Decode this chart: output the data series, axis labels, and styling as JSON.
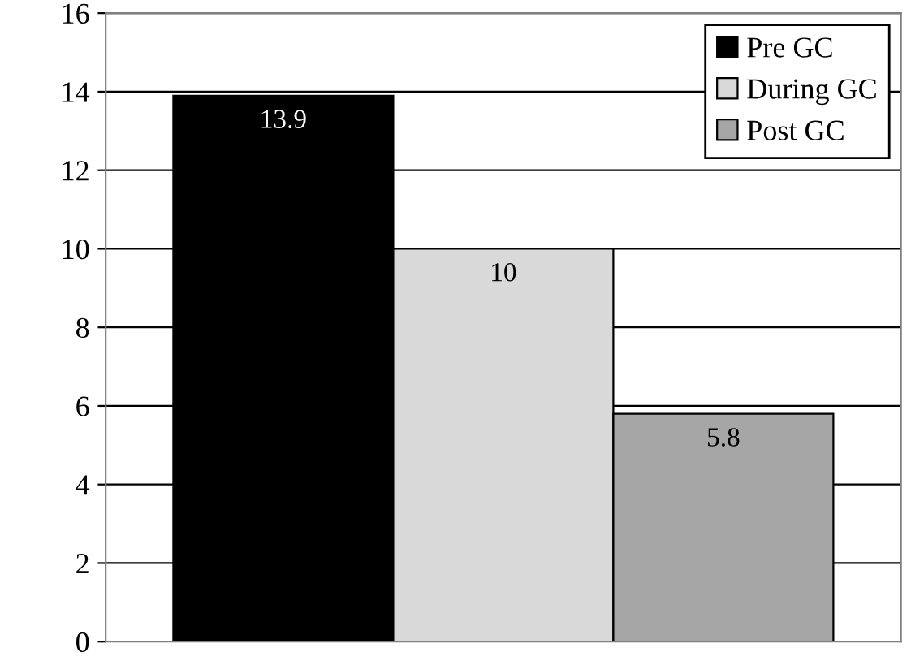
{
  "chart_data": {
    "type": "bar",
    "categories": [
      null
    ],
    "series": [
      {
        "name": "Pre GC",
        "color": "#000000",
        "values": [
          13.9
        ]
      },
      {
        "name": "During GC",
        "color": "#d9d9d9",
        "values": [
          10
        ]
      },
      {
        "name": "Post GC",
        "color": "#a6a6a6",
        "values": [
          5.8
        ]
      }
    ],
    "ylim": [
      0,
      16
    ],
    "yticks": [
      0,
      2,
      4,
      6,
      8,
      10,
      12,
      14,
      16
    ],
    "grid": "y",
    "legend": "top right",
    "data_labels": true
  }
}
